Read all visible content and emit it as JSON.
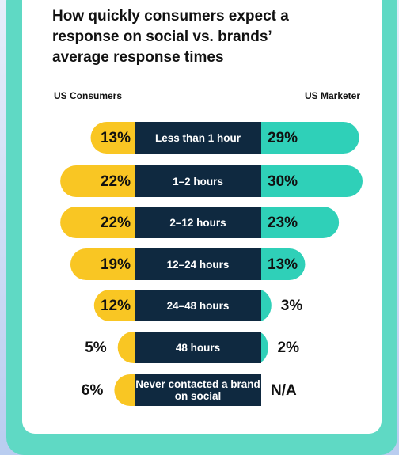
{
  "chart_data": {
    "type": "butterfly",
    "title": "How quickly consumers expect a response on social vs. brands’ average response times",
    "categories": [
      "Less than 1 hour",
      "1–2 hours",
      "2–12 hours",
      "12–24 hours",
      "24–48 hours",
      "48 hours",
      "Never contacted a brand on social"
    ],
    "series": [
      {
        "name": "US Consumers",
        "color": "#f9c623",
        "values": [
          13,
          22,
          22,
          19,
          12,
          5,
          6
        ],
        "value_labels": [
          "13%",
          "22%",
          "22%",
          "19%",
          "12%",
          "5%",
          "6%"
        ]
      },
      {
        "name": "US Marketer",
        "color": "#2fd0b8",
        "values": [
          29,
          30,
          23,
          13,
          3,
          2,
          null
        ],
        "value_labels": [
          "29%",
          "30%",
          "23%",
          "13%",
          "3%",
          "2%",
          "N/A"
        ]
      }
    ],
    "xlim": [
      0,
      30
    ]
  }
}
